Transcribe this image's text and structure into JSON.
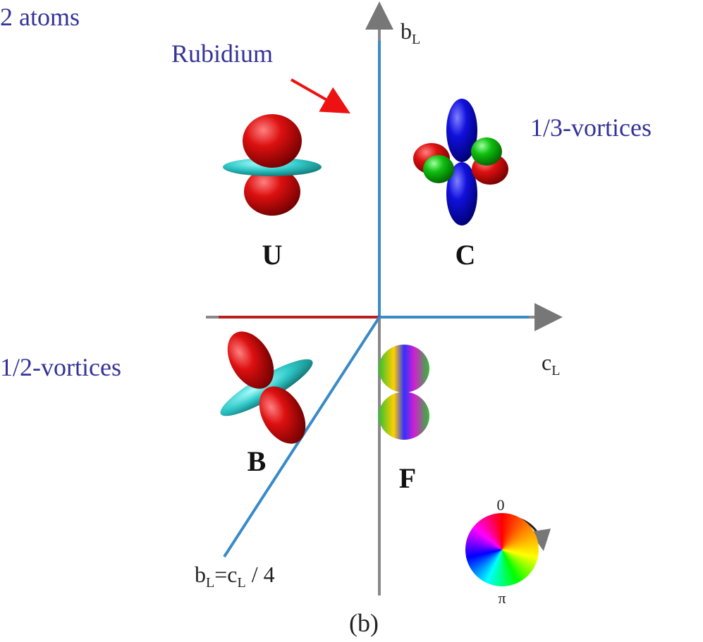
{
  "title": "2 atoms",
  "annotations": {
    "rubidium": "Rubidium",
    "third_vortices": "1/3-vortices",
    "half_vortices": "1/2-vortices"
  },
  "axes": {
    "vertical": {
      "main": "b",
      "sub": "L"
    },
    "horizontal": {
      "main": "c",
      "sub": "L"
    }
  },
  "line_label": {
    "parts": [
      "b",
      "L",
      "=c",
      "L",
      " / 4"
    ]
  },
  "phases": {
    "U": "U",
    "C": "C",
    "B": "B",
    "F": "F"
  },
  "wheel": {
    "top": "0",
    "bottom": "π"
  },
  "caption": "(b)"
}
